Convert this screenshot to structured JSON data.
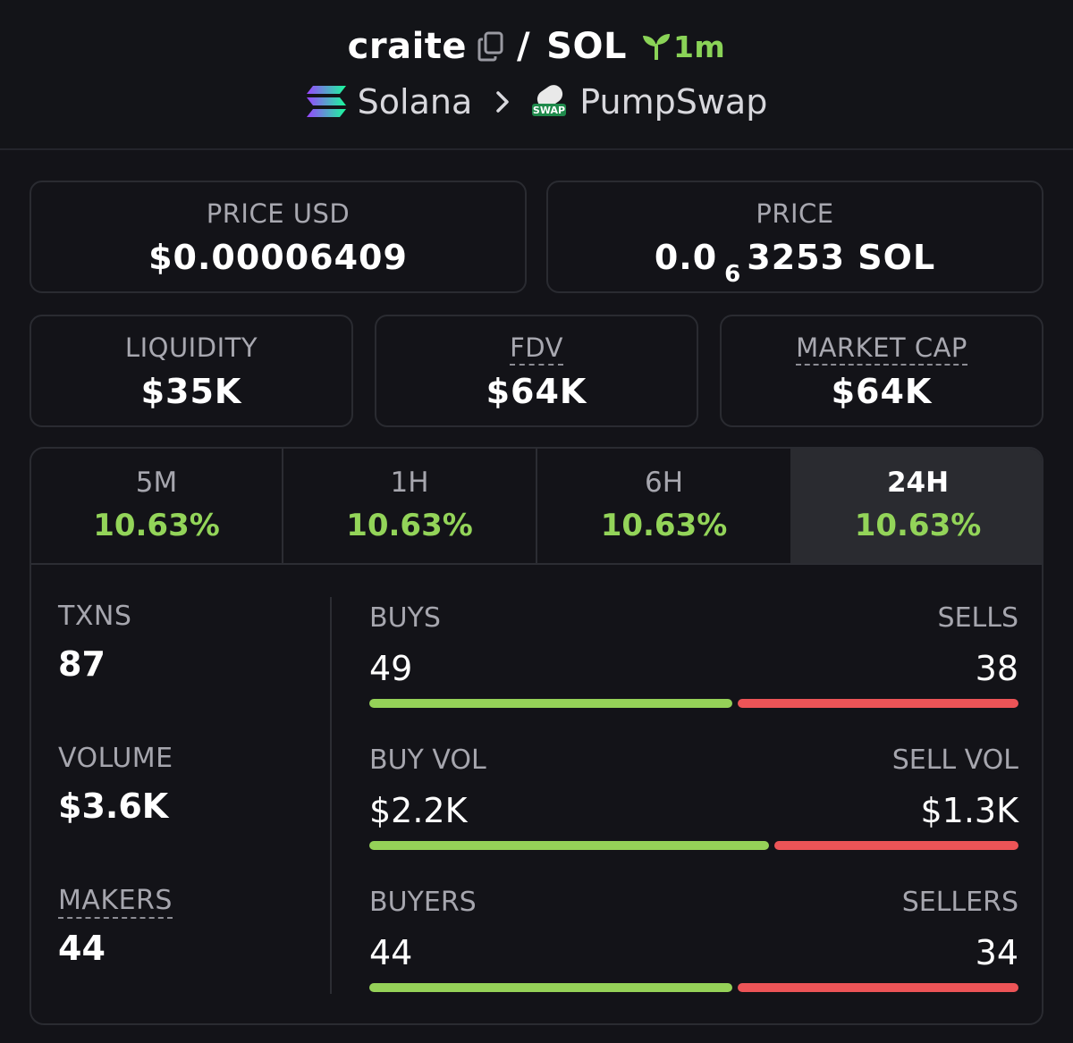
{
  "header": {
    "token": "craite",
    "separator": "/",
    "quote": "SOL",
    "age": "1m",
    "chain": "Solana",
    "dex": "PumpSwap",
    "dex_logo_text": "SWAP"
  },
  "price_usd": {
    "label": "PRICE USD",
    "value": "$0.00006409"
  },
  "price_native": {
    "label": "PRICE",
    "prefix": "0.0",
    "zeros": "6",
    "digits": "3253",
    "unit": "SOL"
  },
  "metrics": [
    {
      "label": "LIQUIDITY",
      "value": "$35K"
    },
    {
      "label": "FDV",
      "value": "$64K"
    },
    {
      "label": "MARKET CAP",
      "value": "$64K"
    }
  ],
  "timeframes": [
    {
      "label": "5M",
      "change": "10.63%",
      "active": false
    },
    {
      "label": "1H",
      "change": "10.63%",
      "active": false
    },
    {
      "label": "6H",
      "change": "10.63%",
      "active": false
    },
    {
      "label": "24H",
      "change": "10.63%",
      "active": true
    }
  ],
  "left_stats": [
    {
      "label": "TXNS",
      "value": "87"
    },
    {
      "label": "VOLUME",
      "value": "$3.6K"
    },
    {
      "label": "MAKERS",
      "value": "44"
    }
  ],
  "split_stats": [
    {
      "left_label": "BUYS",
      "left_value": "49",
      "right_label": "SELLS",
      "right_value": "38",
      "buy_fraction": 0.563
    },
    {
      "left_label": "BUY VOL",
      "left_value": "$2.2K",
      "right_label": "SELL VOL",
      "right_value": "$1.3K",
      "buy_fraction": 0.62
    },
    {
      "left_label": "BUYERS",
      "left_value": "44",
      "right_label": "SELLERS",
      "right_value": "34",
      "buy_fraction": 0.564
    }
  ],
  "colors": {
    "positive": "#93d459",
    "buy_bar": "#95d158",
    "sell_bar": "#ec5457",
    "background": "#131318"
  }
}
